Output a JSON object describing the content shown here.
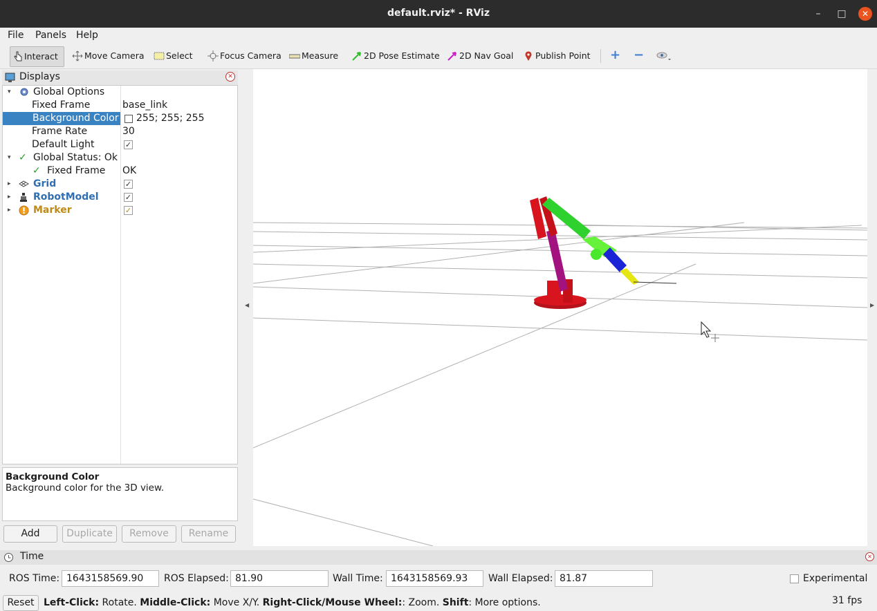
{
  "window": {
    "title": "default.rviz* - RViz"
  },
  "menubar": {
    "items": [
      "File",
      "Panels",
      "Help"
    ]
  },
  "toolbar": {
    "tools": [
      {
        "label": "Interact",
        "icon": "hand-pointer-icon",
        "active": true
      },
      {
        "label": "Move Camera",
        "icon": "move-arrows-icon"
      },
      {
        "label": "Select",
        "icon": "select-box-icon"
      },
      {
        "label": "Focus Camera",
        "icon": "focus-target-icon"
      },
      {
        "label": "Measure",
        "icon": "ruler-icon"
      },
      {
        "label": "2D Pose Estimate",
        "icon": "green-arrow-icon"
      },
      {
        "label": "2D Nav Goal",
        "icon": "magenta-arrow-icon"
      },
      {
        "label": "Publish Point",
        "icon": "map-pin-icon"
      }
    ],
    "extra_icons": [
      "plus-icon",
      "minus-icon",
      "eye-icon"
    ]
  },
  "displays": {
    "title": "Displays",
    "rows": [
      {
        "label": "Global Options",
        "icon": "gear-icon"
      },
      {
        "label": "Fixed Frame",
        "value": "base_link"
      },
      {
        "label": "Background Color",
        "value": "255; 255; 255"
      },
      {
        "label": "Frame Rate",
        "value": "30"
      },
      {
        "label": "Default Light"
      },
      {
        "label": "Global Status: Ok"
      },
      {
        "label": "Fixed Frame",
        "value": "OK"
      },
      {
        "label": "Grid",
        "color": "#2f6fb5"
      },
      {
        "label": "RobotModel",
        "color": "#2f6fb5"
      },
      {
        "label": "Marker",
        "color": "#c08a16"
      }
    ],
    "checkmark": "✓"
  },
  "description": {
    "title": "Background Color",
    "text": "Background color for the 3D view."
  },
  "buttons": {
    "add": "Add",
    "duplicate": "Duplicate",
    "remove": "Remove",
    "rename": "Rename"
  },
  "time": {
    "title": "Time",
    "ros_time_label": "ROS Time:",
    "ros_time": "1643158569.90",
    "ros_elapsed_label": "ROS Elapsed:",
    "ros_elapsed": "81.90",
    "wall_time_label": "Wall Time:",
    "wall_time": "1643158569.93",
    "wall_elapsed_label": "Wall Elapsed:",
    "wall_elapsed": "81.87",
    "experimental_label": "Experimental"
  },
  "status": {
    "reset": "Reset",
    "hint_parts": [
      {
        "b": "Left-Click:"
      },
      {
        "t": " Rotate. "
      },
      {
        "b": "Middle-Click:"
      },
      {
        "t": " Move X/Y. "
      },
      {
        "b": "Right-Click/Mouse Wheel:"
      },
      {
        "t": ": Zoom. "
      },
      {
        "b": "Shift"
      },
      {
        "t": ": More options."
      }
    ],
    "fps": "31 fps"
  }
}
